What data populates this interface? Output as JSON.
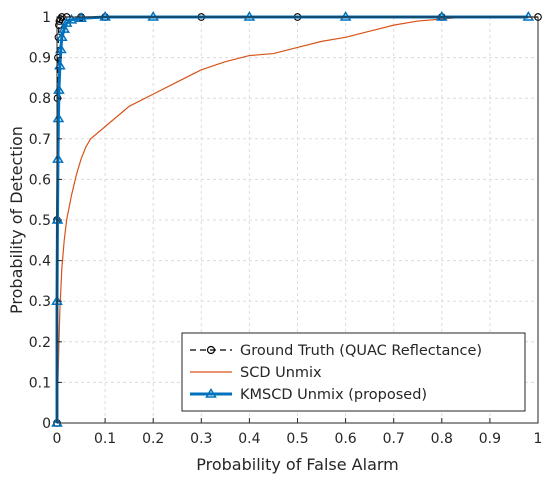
{
  "chart_data": {
    "type": "line",
    "title": "",
    "xlabel": "Probability of False Alarm",
    "ylabel": "Probability of Detection",
    "xlim": [
      0,
      1
    ],
    "ylim": [
      0,
      1
    ],
    "xticks": [
      "0",
      "0.1",
      "0.2",
      "0.3",
      "0.4",
      "0.5",
      "0.6",
      "0.7",
      "0.8",
      "0.9",
      "1"
    ],
    "yticks": [
      "0",
      "0.1",
      "0.2",
      "0.3",
      "0.4",
      "0.5",
      "0.6",
      "0.7",
      "0.8",
      "0.9",
      "1"
    ],
    "grid": true,
    "legend_position": "bottom-right",
    "series": [
      {
        "name": "Ground Truth (QUAC Reflectance)",
        "color": "#000000",
        "line_style": "dashed",
        "marker": "circle",
        "x": [
          0,
          0,
          0.001,
          0.002,
          0.003,
          0.004,
          0.005,
          0.007,
          0.01,
          0.02,
          0.05,
          0.1,
          0.3,
          0.5,
          0.8,
          1.0
        ],
        "y": [
          0,
          0.5,
          0.8,
          0.9,
          0.95,
          0.98,
          0.99,
          0.995,
          1.0,
          1.0,
          1.0,
          1.0,
          1.0,
          1.0,
          1.0,
          1.0
        ]
      },
      {
        "name": "SCD Unmix",
        "color": "#D95319",
        "line_style": "solid",
        "marker": "none",
        "x": [
          0,
          0.003,
          0.006,
          0.01,
          0.015,
          0.02,
          0.03,
          0.04,
          0.05,
          0.06,
          0.07,
          0.08,
          0.1,
          0.12,
          0.15,
          0.2,
          0.25,
          0.3,
          0.35,
          0.4,
          0.45,
          0.5,
          0.55,
          0.6,
          0.65,
          0.7,
          0.75,
          0.8,
          0.85,
          0.9,
          0.95,
          1.0
        ],
        "y": [
          0,
          0.15,
          0.28,
          0.38,
          0.45,
          0.5,
          0.56,
          0.61,
          0.65,
          0.68,
          0.7,
          0.71,
          0.73,
          0.75,
          0.78,
          0.81,
          0.84,
          0.87,
          0.89,
          0.905,
          0.91,
          0.925,
          0.94,
          0.95,
          0.965,
          0.98,
          0.99,
          0.995,
          1.0,
          1.0,
          1.0,
          1.0
        ]
      },
      {
        "name": "KMSCD Unmix (proposed)",
        "color": "#0072BD",
        "line_style": "solid",
        "marker": "triangle",
        "x": [
          0,
          0,
          0.001,
          0.002,
          0.003,
          0.004,
          0.006,
          0.008,
          0.01,
          0.015,
          0.02,
          0.03,
          0.05,
          0.1,
          0.2,
          0.4,
          0.6,
          0.8,
          0.98
        ],
        "y": [
          0,
          0.3,
          0.5,
          0.65,
          0.75,
          0.82,
          0.88,
          0.92,
          0.95,
          0.97,
          0.985,
          0.993,
          0.997,
          1.0,
          1.0,
          1.0,
          1.0,
          1.0,
          1.0
        ]
      }
    ]
  }
}
